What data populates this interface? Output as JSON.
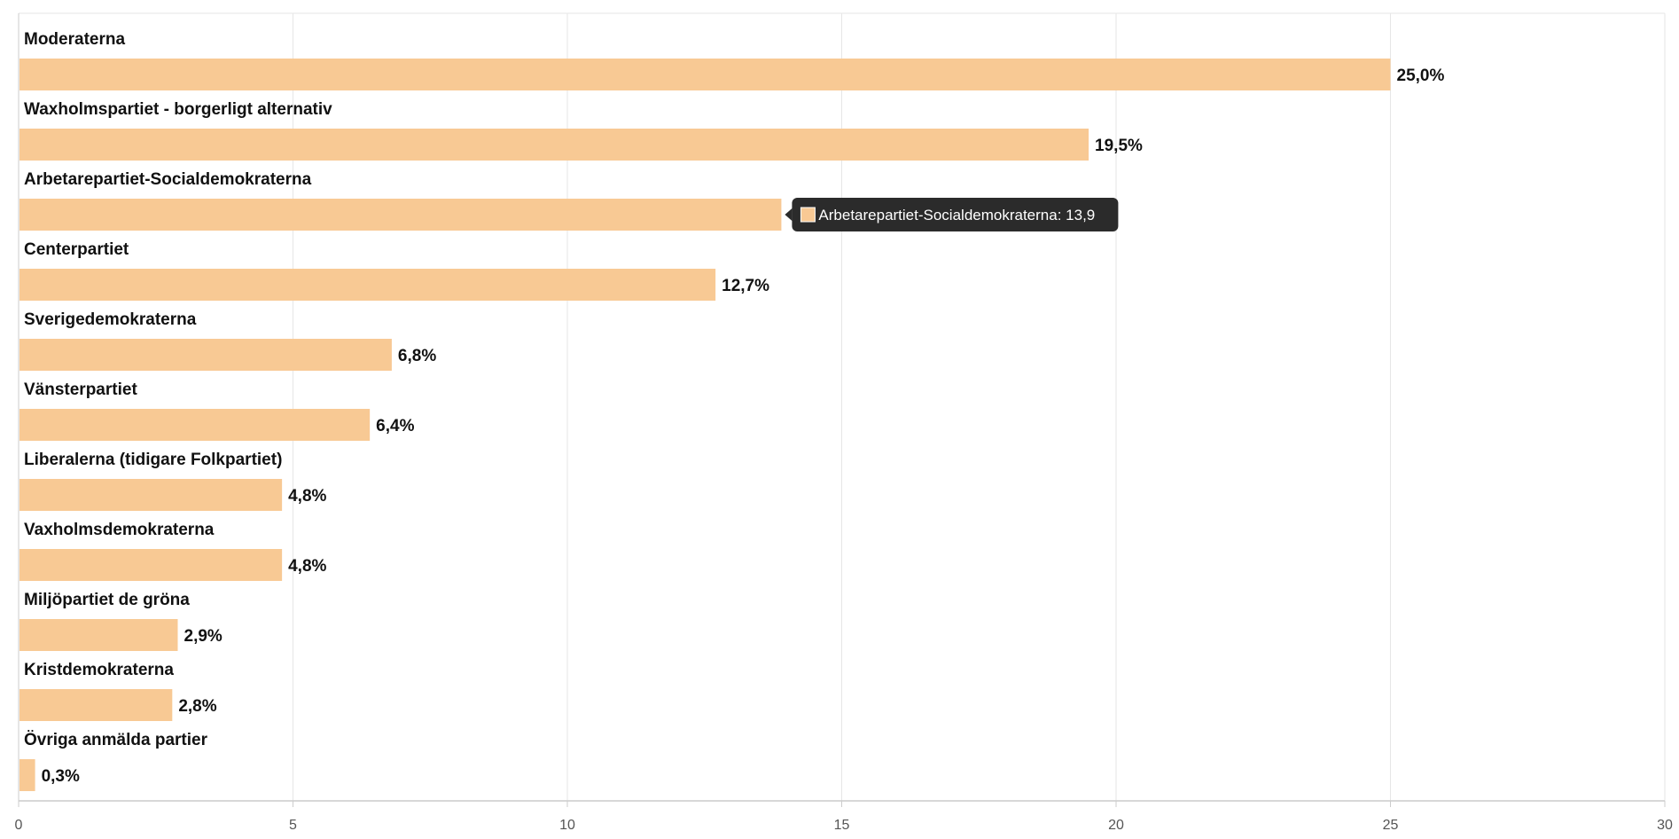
{
  "chart_data": {
    "type": "bar",
    "orientation": "horizontal",
    "categories": [
      "Moderaterna",
      "Waxholmspartiet - borgerligt alternativ",
      "Arbetarepartiet-Socialdemokraterna",
      "Centerpartiet",
      "Sverigedemokraterna",
      "Vänsterpartiet",
      "Liberalerna (tidigare Folkpartiet)",
      "Vaxholmsdemokraterna",
      "Miljöpartiet de gröna",
      "Kristdemokraterna",
      "Övriga anmälda partier"
    ],
    "values": [
      25.0,
      19.5,
      13.9,
      12.7,
      6.8,
      6.4,
      4.8,
      4.8,
      2.9,
      2.8,
      0.3
    ],
    "value_labels": [
      "25,0%",
      "19,5%",
      "",
      "12,7%",
      "6,8%",
      "6,4%",
      "4,8%",
      "4,8%",
      "2,9%",
      "2,8%",
      "0,3%"
    ],
    "xlim": [
      0,
      30
    ],
    "xticks": [
      "0",
      "5",
      "10",
      "15",
      "20",
      "25",
      "30"
    ],
    "title": "",
    "xlabel": "",
    "ylabel": "",
    "grid": true,
    "bar_color": "#f8c994",
    "tooltip": {
      "category_index": 2,
      "text": "Arbetarepartiet-Socialdemokraterna: 13,9"
    }
  }
}
